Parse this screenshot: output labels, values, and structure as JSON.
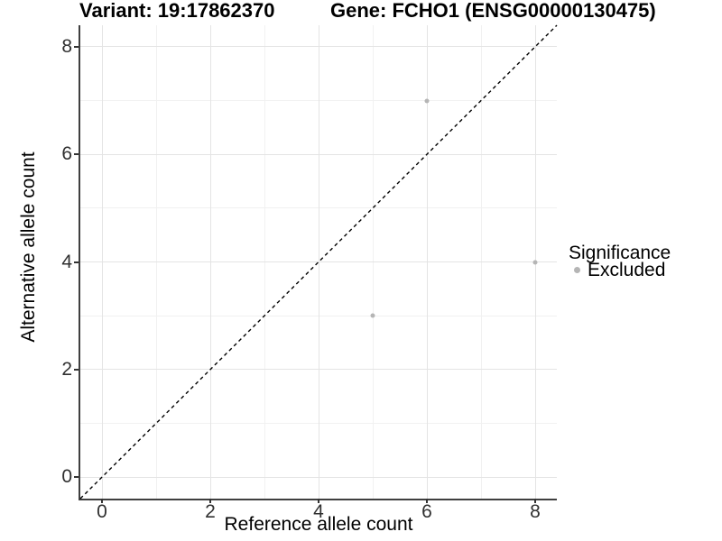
{
  "titles": {
    "variant": "Variant: 19:17862370",
    "gene": "Gene: FCHO1 (ENSG00000130475)"
  },
  "axes": {
    "x": {
      "label": "Reference allele count",
      "tick_labels": [
        "0",
        "2",
        "4",
        "6",
        "8"
      ]
    },
    "y": {
      "label": "Alternative allele count",
      "tick_labels": [
        "0",
        "2",
        "4",
        "6",
        "8"
      ]
    }
  },
  "legend": {
    "title": "Significance",
    "items": [
      {
        "label": "Excluded",
        "color": "#b5b5b5"
      }
    ]
  },
  "chart_data": {
    "type": "scatter",
    "title_left": "Variant: 19:17862370",
    "title_right": "Gene: FCHO1 (ENSG00000130475)",
    "xlabel": "Reference allele count",
    "ylabel": "Alternative allele count",
    "xlim": [
      -0.4,
      8.4
    ],
    "ylim": [
      -0.4,
      8.4
    ],
    "x_major_ticks": [
      0,
      2,
      4,
      6,
      8
    ],
    "y_major_ticks": [
      0,
      2,
      4,
      6,
      8
    ],
    "grid": "major+minor",
    "legend_position": "right",
    "series": [
      {
        "name": "Excluded",
        "color": "#b5b5b5",
        "points": [
          {
            "x": 6,
            "y": 7
          },
          {
            "x": 8,
            "y": 4
          },
          {
            "x": 5,
            "y": 3
          }
        ]
      }
    ],
    "reference_line": {
      "type": "identity y=x",
      "style": "dashed",
      "color": "#000000"
    }
  },
  "colors": {
    "point_excluded": "#b5b5b5",
    "grid_major": "#e4e4e4",
    "grid_minor": "#f1f1f1",
    "axis_line": "#3f3f3f",
    "tick_text": "#303030",
    "background": "#ffffff"
  }
}
